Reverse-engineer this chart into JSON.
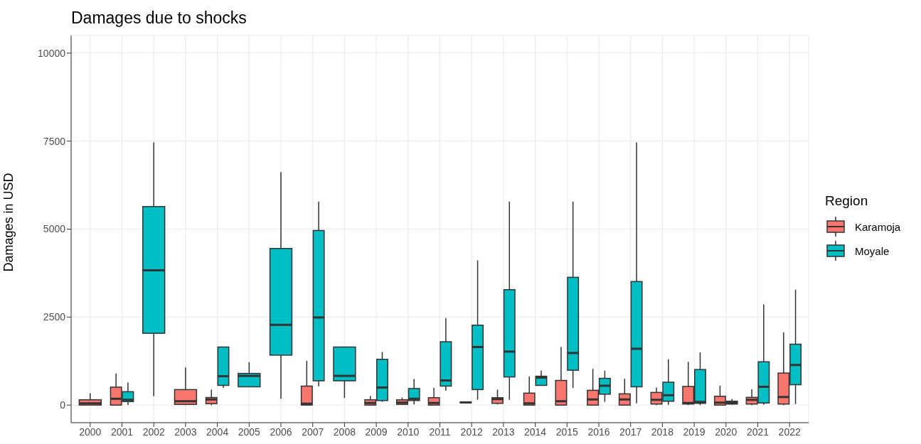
{
  "chart_data": {
    "type": "box",
    "title": "Damages due to shocks",
    "ylabel": "Damages in USD",
    "legend_title": "Region",
    "legend": "right",
    "grid": true,
    "categories": [
      "2000",
      "2001",
      "2002",
      "2003",
      "2004",
      "2005",
      "2006",
      "2007",
      "2008",
      "2009",
      "2010",
      "2011",
      "2012",
      "2013",
      "2014",
      "2015",
      "2016",
      "2017",
      "2018",
      "2019",
      "2020",
      "2021",
      "2022"
    ],
    "ylim": [
      -500,
      10500
    ],
    "yticks": [
      0,
      2500,
      5000,
      7500,
      10000
    ],
    "series": [
      {
        "name": "Karamoja",
        "color": "#f8766d",
        "boxes": [
          {
            "low": 0,
            "q1": 0,
            "median": 50,
            "q3": 150,
            "high": 340
          },
          {
            "low": 0,
            "q1": 0,
            "median": 180,
            "q3": 510,
            "high": 900
          },
          null,
          {
            "low": 0,
            "q1": 20,
            "median": 110,
            "q3": 440,
            "high": 1070
          },
          {
            "low": 0,
            "q1": 40,
            "median": 160,
            "q3": 215,
            "high": 440
          },
          null,
          null,
          {
            "low": 0,
            "q1": 0,
            "median": 40,
            "q3": 540,
            "high": 1260
          },
          null,
          {
            "low": 0,
            "q1": 0,
            "median": 60,
            "q3": 150,
            "high": 260
          },
          {
            "low": 0,
            "q1": 20,
            "median": 70,
            "q3": 150,
            "high": 215
          },
          {
            "low": 0,
            "q1": 0,
            "median": 60,
            "q3": 210,
            "high": 490
          },
          {
            "low": 50,
            "q1": 60,
            "median": 75,
            "q3": 90,
            "high": 100
          },
          {
            "low": 20,
            "q1": 50,
            "median": 170,
            "q3": 210,
            "high": 440
          },
          {
            "low": 0,
            "q1": 0,
            "median": 50,
            "q3": 340,
            "high": 810
          },
          {
            "low": 0,
            "q1": 0,
            "median": 110,
            "q3": 700,
            "high": 1650
          },
          {
            "low": 0,
            "q1": 0,
            "median": 160,
            "q3": 420,
            "high": 1030
          },
          {
            "low": 0,
            "q1": 0,
            "median": 160,
            "q3": 320,
            "high": 750
          },
          {
            "low": 0,
            "q1": 30,
            "median": 150,
            "q3": 360,
            "high": 500
          },
          {
            "low": 0,
            "q1": 30,
            "median": 60,
            "q3": 530,
            "high": 1230
          },
          {
            "low": 0,
            "q1": 0,
            "median": 70,
            "q3": 250,
            "high": 550
          },
          {
            "low": 0,
            "q1": 30,
            "median": 150,
            "q3": 220,
            "high": 450
          },
          {
            "low": 0,
            "q1": 30,
            "median": 230,
            "q3": 910,
            "high": 2070
          }
        ]
      },
      {
        "name": "Moyale",
        "color": "#00bfc4",
        "boxes": [
          null,
          {
            "low": 0,
            "q1": 100,
            "median": 150,
            "q3": 380,
            "high": 640
          },
          {
            "low": 250,
            "q1": 2040,
            "median": 3830,
            "q3": 5640,
            "high": 7460
          },
          null,
          {
            "low": 490,
            "q1": 560,
            "median": 820,
            "q3": 1650,
            "high": 1650
          },
          {
            "low": 510,
            "q1": 520,
            "median": 830,
            "q3": 900,
            "high": 1220
          },
          {
            "low": 180,
            "q1": 1420,
            "median": 2280,
            "q3": 4450,
            "high": 6620
          },
          {
            "low": 530,
            "q1": 690,
            "median": 2490,
            "q3": 4960,
            "high": 5780
          },
          {
            "low": 200,
            "q1": 690,
            "median": 830,
            "q3": 1650,
            "high": 1650
          },
          {
            "low": 90,
            "q1": 130,
            "median": 500,
            "q3": 1300,
            "high": 1510
          },
          {
            "low": 20,
            "q1": 130,
            "median": 180,
            "q3": 470,
            "high": 740
          },
          {
            "low": 410,
            "q1": 540,
            "median": 700,
            "q3": 1800,
            "high": 2470
          },
          {
            "low": 150,
            "q1": 440,
            "median": 1650,
            "q3": 2270,
            "high": 4110
          },
          {
            "low": 150,
            "q1": 800,
            "median": 1520,
            "q3": 3280,
            "high": 5780
          },
          {
            "low": 560,
            "q1": 560,
            "median": 780,
            "q3": 820,
            "high": 980
          },
          {
            "low": 490,
            "q1": 990,
            "median": 1480,
            "q3": 3630,
            "high": 5780
          },
          {
            "low": 90,
            "q1": 310,
            "median": 550,
            "q3": 760,
            "high": 980
          },
          {
            "low": 50,
            "q1": 520,
            "median": 1600,
            "q3": 3510,
            "high": 7460
          },
          {
            "low": 10,
            "q1": 110,
            "median": 280,
            "q3": 650,
            "high": 1300
          },
          {
            "low": 0,
            "q1": 50,
            "median": 90,
            "q3": 1010,
            "high": 1500
          },
          {
            "low": 10,
            "q1": 30,
            "median": 70,
            "q3": 110,
            "high": 170
          },
          {
            "low": 10,
            "q1": 60,
            "median": 520,
            "q3": 1230,
            "high": 2860
          },
          {
            "low": 30,
            "q1": 580,
            "median": 1140,
            "q3": 1730,
            "high": 3280
          }
        ]
      }
    ]
  }
}
